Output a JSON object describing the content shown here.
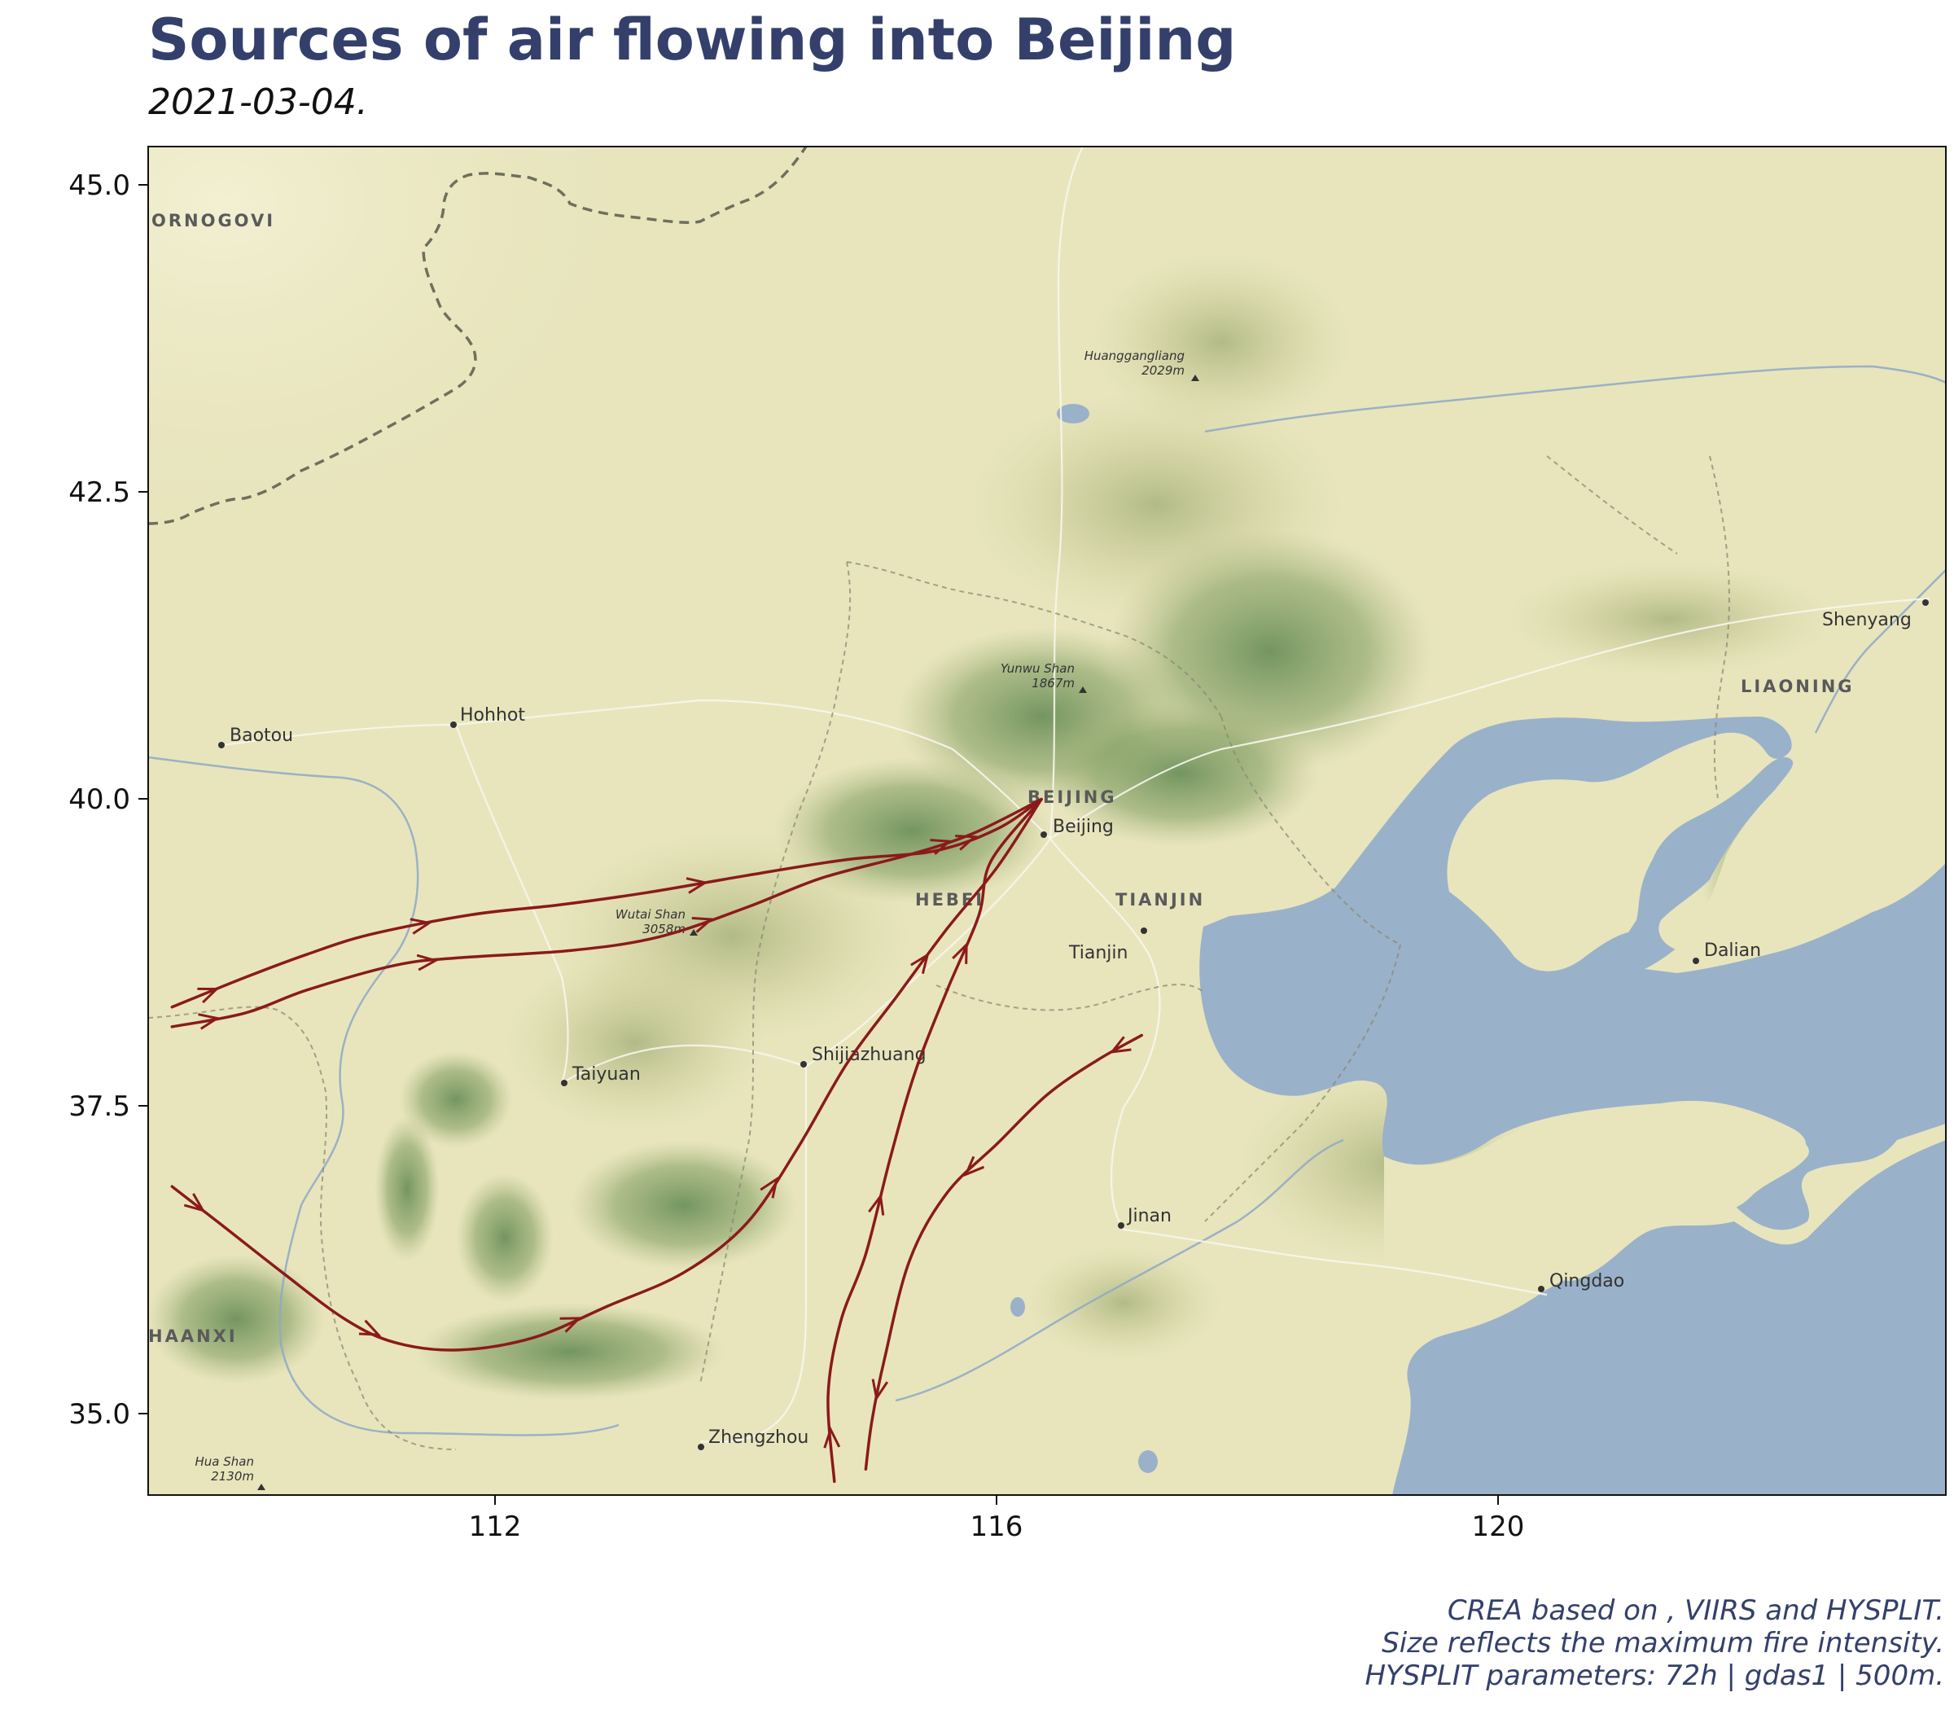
{
  "title": "Sources of air flowing into Beijing",
  "subtitle": "2021-03-04.",
  "caption": [
    "CREA based on , VIIRS and HYSPLIT.",
    "Size reflects the maximum fire intensity.",
    "HYSPLIT parameters: 72h | gdas1 | 500m."
  ],
  "axes": {
    "x_ticks": [
      "112",
      "116",
      "120"
    ],
    "y_ticks": [
      "45.0",
      "42.5",
      "40.0",
      "37.5",
      "35.0"
    ]
  },
  "colors": {
    "trajectory": "#8b1a1a",
    "land": "#e8e5bd",
    "sea": "#9ab1ca",
    "mountain": "#6b8f55",
    "border": "#7a7a66",
    "title": "#34406b"
  },
  "labels": {
    "regions": [
      "ORNOGOVI",
      "LIAONING",
      "BEIJING",
      "HEBEI",
      "TIANJIN",
      "HAANXI"
    ],
    "cities": [
      "Baotou",
      "Hohhot",
      "Beijing",
      "Tianjin",
      "Shijiazhuang",
      "Taiyuan",
      "Jinan",
      "Qingdao",
      "Zhengzhou",
      "Shenyang",
      "Dalian"
    ],
    "peaks": [
      {
        "name": "Huanggangliang",
        "elev": "2029m"
      },
      {
        "name": "Yunwu Shan",
        "elev": "1867m"
      },
      {
        "name": "Wutai Shan",
        "elev": "3058m"
      },
      {
        "name": "Hua Shan",
        "elev": "2130m"
      }
    ]
  },
  "map_data": {
    "extent": {
      "lon": [
        109.23,
        123.56
      ],
      "lat": [
        34.34,
        45.31
      ]
    },
    "destination": {
      "name": "Beijing",
      "lon": 116.35,
      "lat": 40.0
    },
    "trajectories": [
      {
        "points": [
          [
            109.42,
            38.31
          ],
          [
            110.0,
            38.55
          ],
          [
            110.5,
            38.74
          ],
          [
            111.0,
            38.9
          ],
          [
            111.8,
            39.06
          ],
          [
            112.5,
            39.14
          ],
          [
            113.2,
            39.24
          ],
          [
            114.0,
            39.38
          ],
          [
            114.8,
            39.51
          ],
          [
            115.5,
            39.58
          ],
          [
            116.0,
            39.76
          ],
          [
            116.35,
            40.0
          ]
        ]
      },
      {
        "points": [
          [
            109.42,
            38.15
          ],
          [
            110.0,
            38.26
          ],
          [
            110.5,
            38.45
          ],
          [
            111.2,
            38.65
          ],
          [
            111.7,
            38.71
          ],
          [
            112.6,
            38.77
          ],
          [
            113.3,
            38.88
          ],
          [
            114.0,
            39.12
          ],
          [
            114.6,
            39.36
          ],
          [
            115.3,
            39.55
          ],
          [
            115.8,
            39.72
          ],
          [
            116.35,
            40.0
          ]
        ]
      },
      {
        "points": [
          [
            109.42,
            36.85
          ],
          [
            109.8,
            36.55
          ],
          [
            110.3,
            36.15
          ],
          [
            110.8,
            35.77
          ],
          [
            111.2,
            35.58
          ],
          [
            111.7,
            35.52
          ],
          [
            112.3,
            35.62
          ],
          [
            112.9,
            35.88
          ],
          [
            113.5,
            36.15
          ],
          [
            114.0,
            36.55
          ],
          [
            114.4,
            37.15
          ],
          [
            114.8,
            37.85
          ],
          [
            115.2,
            38.4
          ],
          [
            115.6,
            38.95
          ],
          [
            116.0,
            39.45
          ],
          [
            116.35,
            40.0
          ]
        ]
      },
      {
        "points": [
          [
            114.7,
            34.45
          ],
          [
            114.65,
            35.15
          ],
          [
            114.75,
            35.75
          ],
          [
            114.95,
            36.3
          ],
          [
            115.15,
            37.1
          ],
          [
            115.35,
            37.8
          ],
          [
            115.6,
            38.45
          ],
          [
            115.85,
            39.05
          ],
          [
            115.95,
            39.5
          ],
          [
            116.35,
            40.0
          ]
        ]
      },
      {
        "points": [
          [
            117.15,
            38.08
          ],
          [
            116.8,
            37.88
          ],
          [
            116.4,
            37.6
          ],
          [
            116.0,
            37.2
          ],
          [
            115.6,
            36.8
          ],
          [
            115.3,
            36.25
          ],
          [
            115.1,
            35.45
          ],
          [
            115.0,
            34.95
          ],
          [
            114.95,
            34.55
          ]
        ]
      }
    ]
  }
}
